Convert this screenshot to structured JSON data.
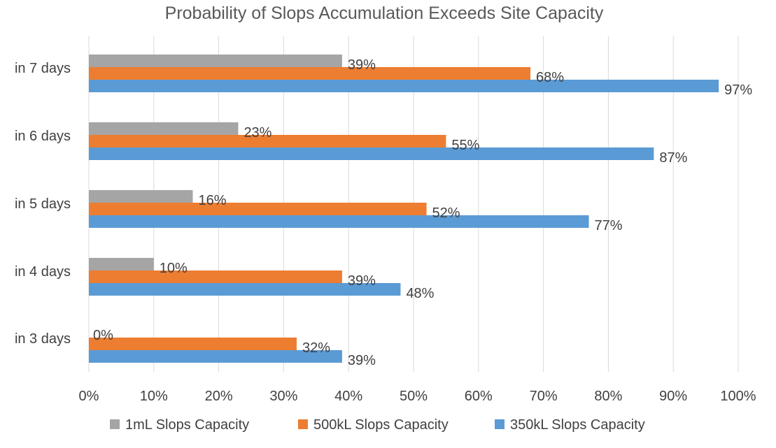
{
  "chart_data": {
    "type": "bar",
    "orientation": "horizontal",
    "title": "Probability of Slops Accumulation Exceeds Site Capacity",
    "categories": [
      "in 7 days",
      "in 6 days",
      "in 5 days",
      "in 4 days",
      "in 3 days"
    ],
    "series": [
      {
        "name": "1mL Slops Capacity",
        "color": "#a5a5a5",
        "values": [
          39,
          23,
          16,
          10,
          0
        ],
        "labels": [
          "39%",
          "23%",
          "16%",
          "10%",
          "0%"
        ]
      },
      {
        "name": "500kL Slops Capacity",
        "color": "#ed7d31",
        "values": [
          68,
          55,
          52,
          39,
          32
        ],
        "labels": [
          "68%",
          "55%",
          "52%",
          "39%",
          "32%"
        ]
      },
      {
        "name": "350kL Slops Capacity",
        "color": "#5b9bd5",
        "values": [
          97,
          87,
          77,
          48,
          39
        ],
        "labels": [
          "97%",
          "87%",
          "77%",
          "48%",
          "39%"
        ]
      }
    ],
    "xlim": [
      0,
      100
    ],
    "xticks": [
      "0%",
      "10%",
      "20%",
      "30%",
      "40%",
      "50%",
      "60%",
      "70%",
      "80%",
      "90%",
      "100%"
    ],
    "xlabel": "",
    "ylabel": "",
    "grid": true,
    "legend_position": "bottom"
  }
}
